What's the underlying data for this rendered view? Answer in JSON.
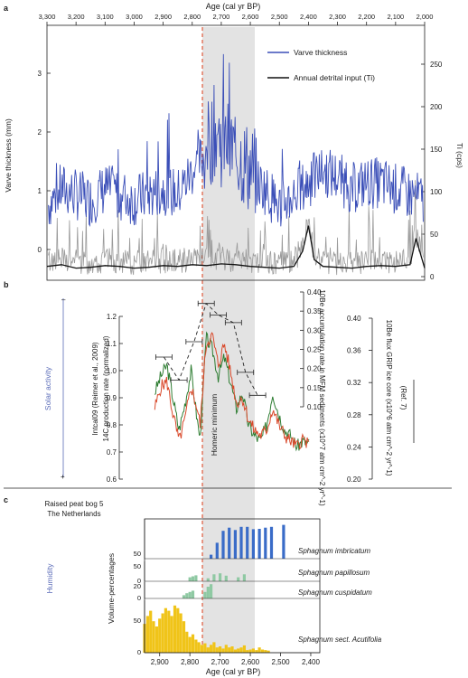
{
  "panel_labels": {
    "a": "a",
    "b": "b",
    "c": "c"
  },
  "colors": {
    "varve": "#3b4fb8",
    "ti_raw": "#9a9a9a",
    "ti_smooth": "#111111",
    "red": "#d9492b",
    "green": "#2e7d32",
    "blue_hist": "#3a6cc8",
    "green_hist": "#8fc9a3",
    "yellow_hist": "#f0c419",
    "shade": "#e3e3e3",
    "dashed": "#e05a3c",
    "solar": "#5a6bb8"
  },
  "top_axis": {
    "title": "Age (cal yr BP)",
    "ticks": [
      "3,300",
      "3,200",
      "3,100",
      "3,000",
      "2,900",
      "2,800",
      "2,700",
      "2,600",
      "2,500",
      "2,400",
      "2,300",
      "2,200",
      "2,100",
      "2,000"
    ]
  },
  "bottom_axis": {
    "title": "Age (cal yr BP)",
    "ticks": [
      "2,900",
      "2,800",
      "2,700",
      "2,600",
      "2,500",
      "2,400"
    ]
  },
  "chart_data": [
    {
      "type": "line",
      "panel": "a",
      "xlim": [
        3300,
        2000
      ],
      "ylabel_left": "Varve thickness (mm)",
      "yticks_left": [
        "0",
        "1",
        "2",
        "3"
      ],
      "ylabel_right": "Ti (cps)",
      "yticks_right": [
        "0",
        "50",
        "100",
        "150",
        "200",
        "250"
      ],
      "series": [
        {
          "name": "Varve thickness",
          "x": [
            3300,
            3250,
            3200,
            3150,
            3100,
            3050,
            3000,
            2950,
            2900,
            2850,
            2800,
            2750,
            2720,
            2700,
            2650,
            2600,
            2550,
            2500,
            2450,
            2420,
            2400,
            2350,
            2300,
            2250,
            2200,
            2150,
            2100,
            2050,
            2000
          ],
          "values": [
            0.6,
            0.9,
            0.8,
            0.7,
            0.9,
            0.8,
            0.7,
            0.8,
            0.9,
            0.8,
            1.2,
            1.5,
            1.8,
            1.6,
            1.4,
            1.1,
            0.9,
            0.6,
            0.8,
            0.9,
            1.0,
            1.2,
            1.1,
            0.9,
            1.0,
            1.0,
            0.9,
            0.8,
            0.7
          ]
        },
        {
          "name": "Annual detrital input (Ti)",
          "x": [
            3300,
            3250,
            3200,
            3150,
            3100,
            3050,
            3000,
            2950,
            2900,
            2850,
            2800,
            2750,
            2700,
            2650,
            2600,
            2550,
            2500,
            2450,
            2420,
            2400,
            2380,
            2350,
            2300,
            2250,
            2200,
            2150,
            2100,
            2050,
            2030,
            2000
          ],
          "values": [
            12,
            14,
            10,
            11,
            13,
            12,
            10,
            11,
            13,
            12,
            14,
            13,
            15,
            14,
            12,
            11,
            10,
            12,
            30,
            60,
            20,
            12,
            11,
            10,
            12,
            13,
            12,
            14,
            45,
            10
          ]
        }
      ]
    },
    {
      "type": "line",
      "panel": "b",
      "xlim": [
        2900,
        2350
      ],
      "ylabel_left": "Intcal09 (Reimer et al., 2009)\n14C production rate (normalized)",
      "yticks_left": [
        "0.6",
        "0.7",
        "0.8",
        "0.9",
        "1.0",
        "1.1",
        "1.2"
      ],
      "ylabel_mid": "10Be accumulation rate in MFM sediments (x10^7 atm cm^-2 yr^-1)",
      "yticks_mid": [
        "0.10",
        "0.15",
        "0.20",
        "0.25",
        "0.30",
        "0.35",
        "0.40"
      ],
      "ylabel_right": "10Be flux GRIP ice core (x10^6 atm cm^-2 yr^-1)",
      "yticks_right": [
        "0.20",
        "0.24",
        "0.28",
        "0.32",
        "0.36",
        "0.40"
      ],
      "side_label": "Solar activity",
      "ref_label": "(Ref. 7)",
      "annotation": "Homeric minimum",
      "series": [
        {
          "name": "",
          "color": "green",
          "x": [
            2890,
            2870,
            2850,
            2830,
            2810,
            2790,
            2770,
            2750,
            2740,
            2720,
            2700,
            2680,
            2660,
            2640,
            2620,
            2600,
            2580,
            2560,
            2540,
            2520,
            2500,
            2480,
            2460,
            2440,
            2420,
            2400,
            2380
          ],
          "values": [
            0.92,
            0.98,
            1.02,
            0.9,
            0.78,
            0.88,
            1.0,
            0.82,
            0.75,
            1.12,
            1.08,
            0.98,
            1.05,
            0.96,
            0.86,
            0.92,
            0.8,
            0.76,
            0.74,
            0.8,
            0.92,
            0.84,
            0.78,
            0.76,
            0.72,
            0.74,
            0.73
          ]
        },
        {
          "name": "",
          "color": "red",
          "x": [
            2890,
            2870,
            2850,
            2830,
            2810,
            2790,
            2770,
            2750,
            2740,
            2720,
            2700,
            2680,
            2660,
            2640,
            2620,
            2600,
            2580,
            2560,
            2540,
            2520,
            2500,
            2480,
            2460,
            2440,
            2420,
            2400,
            2380
          ],
          "values": [
            0.86,
            0.94,
            0.96,
            0.84,
            0.74,
            0.82,
            0.94,
            0.86,
            0.8,
            1.1,
            1.13,
            1.02,
            1.1,
            1.0,
            0.88,
            0.9,
            0.82,
            0.78,
            0.76,
            0.78,
            0.86,
            0.8,
            0.76,
            0.74,
            0.72,
            0.75,
            0.72
          ]
        },
        {
          "name": "",
          "color": "black-dashed",
          "x": [
            2860,
            2810,
            2760,
            2720,
            2680,
            2630,
            2590,
            2550
          ],
          "values": [
            0.23,
            0.17,
            0.27,
            0.37,
            0.34,
            0.32,
            0.19,
            0.13
          ]
        }
      ]
    },
    {
      "type": "bar",
      "panel": "c",
      "xlim": [
        2950,
        2370
      ],
      "ylabel": "Volume-percentages",
      "side_label": "Humidity",
      "site_label": "Raised peat bog 5\nThe Netherlands",
      "series": [
        {
          "name": "Sphagnum imbricatum",
          "x": [
            2750,
            2730,
            2710,
            2690,
            2670,
            2650,
            2630,
            2610,
            2590,
            2570,
            2550,
            2530,
            2510,
            2490
          ],
          "values": [
            0,
            10,
            40,
            70,
            78,
            72,
            80,
            80,
            74,
            75,
            78,
            80,
            0,
            85
          ]
        },
        {
          "name": "Sphagnum papillosum",
          "x": [
            2800,
            2790,
            2780,
            2760,
            2740,
            2720,
            2700,
            2680,
            2660,
            2640,
            2620
          ],
          "values": [
            20,
            25,
            30,
            0,
            15,
            35,
            40,
            28,
            0,
            20,
            35
          ]
        },
        {
          "name": "Sphagnum cuspidatum",
          "x": [
            2820,
            2810,
            2800,
            2790,
            2770,
            2750,
            2740,
            2730
          ],
          "values": [
            5,
            8,
            10,
            12,
            0,
            10,
            18,
            22
          ]
        },
        {
          "name": "Sphagnum sect. Acutifolia",
          "x": [
            2950,
            2940,
            2930,
            2920,
            2910,
            2900,
            2890,
            2880,
            2870,
            2860,
            2850,
            2840,
            2830,
            2820,
            2810,
            2800,
            2790,
            2780,
            2770,
            2760,
            2750,
            2740,
            2730,
            2720,
            2710,
            2700,
            2690,
            2680,
            2670,
            2660,
            2650,
            2640,
            2630,
            2620,
            2610,
            2600,
            2590,
            2580,
            2570,
            2560,
            2550,
            2540
          ],
          "values": [
            55,
            70,
            80,
            60,
            50,
            65,
            75,
            85,
            80,
            70,
            90,
            85,
            75,
            60,
            40,
            30,
            35,
            25,
            20,
            15,
            18,
            10,
            15,
            20,
            10,
            12,
            8,
            15,
            10,
            12,
            6,
            8,
            10,
            14,
            5,
            6,
            8,
            5,
            10,
            6,
            5,
            4
          ]
        }
      ]
    }
  ]
}
